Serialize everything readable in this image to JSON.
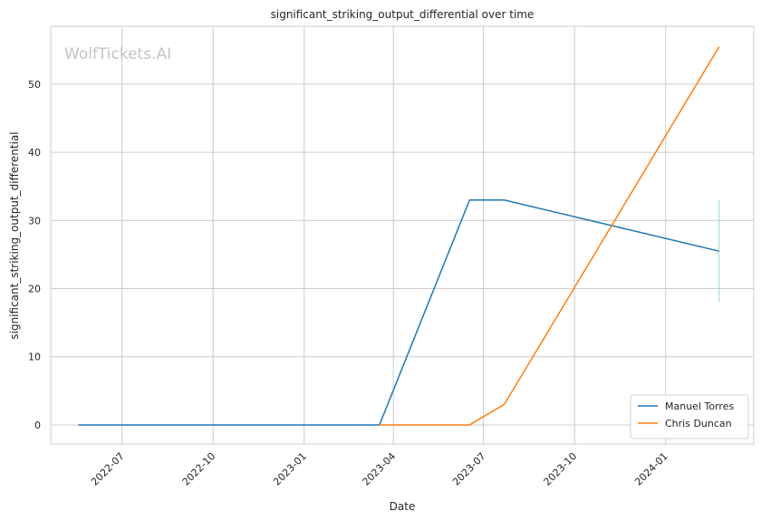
{
  "watermark": "WolfTickets.AI",
  "chart_data": {
    "type": "line",
    "title": "significant_striking_output_differential over time",
    "xlabel": "Date",
    "ylabel": "significant_striking_output_differential",
    "x_ticks": [
      "2022-07",
      "2022-10",
      "2023-01",
      "2023-04",
      "2023-07",
      "2023-10",
      "2024-01"
    ],
    "y_ticks": [
      0,
      10,
      20,
      30,
      40,
      50
    ],
    "xlim": [
      "2022-04-20",
      "2024-03-30"
    ],
    "ylim": [
      -2.8,
      58.5
    ],
    "grid": true,
    "legend_position": "lower-right",
    "series": [
      {
        "name": "Manuel Torres",
        "color": "#1f77b4",
        "points": [
          {
            "x": "2022-05-18",
            "y": 0
          },
          {
            "x": "2023-03-18",
            "y": 0
          },
          {
            "x": "2023-06-17",
            "y": 33
          },
          {
            "x": "2023-07-22",
            "y": 33
          },
          {
            "x": "2024-02-24",
            "y": 25.5
          }
        ]
      },
      {
        "name": "Chris Duncan",
        "color": "#ff7f0e",
        "points": [
          {
            "x": "2023-03-18",
            "y": 0
          },
          {
            "x": "2023-06-17",
            "y": 0
          },
          {
            "x": "2023-07-22",
            "y": 3
          },
          {
            "x": "2024-02-24",
            "y": 55.5
          }
        ]
      }
    ],
    "error_bar": {
      "x": "2024-02-24",
      "low": 18,
      "high": 33,
      "color": "#9fd5c8"
    }
  }
}
